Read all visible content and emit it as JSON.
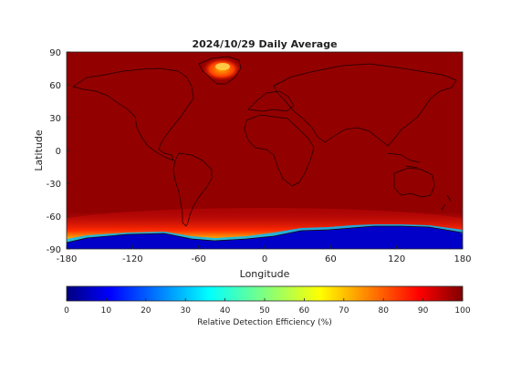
{
  "title": "2024/10/29 Daily Average",
  "map": {
    "x_axis": {
      "label": "Longitude",
      "range": [
        -180,
        180
      ],
      "ticks": [
        -180,
        -120,
        -60,
        0,
        60,
        120,
        180
      ],
      "tick_labels": [
        "-180",
        "-120",
        "-60",
        "0",
        "60",
        "120",
        "180"
      ]
    },
    "y_axis": {
      "label": "Latitude",
      "range": [
        -90,
        90
      ],
      "ticks": [
        90,
        60,
        30,
        0,
        -30,
        -60,
        -90
      ],
      "tick_labels": [
        "90",
        "60",
        "30",
        "0",
        "-30",
        "-60",
        "-90"
      ]
    },
    "dominant_value": 100,
    "features": [
      {
        "feature": "Greenland",
        "description": "lower detection efficiency",
        "value_range": [
          80,
          90
        ]
      },
      {
        "feature": "Antarctic coast",
        "description": "transition band",
        "value_range": [
          40,
          90
        ]
      },
      {
        "feature": "Antarctica interior",
        "description": "very low detection efficiency",
        "value_range": [
          0,
          20
        ]
      }
    ],
    "colormap": "jet",
    "coastlines": true
  },
  "colorbar": {
    "label": "Relative Detection Efficiency (%)",
    "range": [
      0,
      100
    ],
    "ticks": [
      0,
      10,
      20,
      30,
      40,
      50,
      60,
      70,
      80,
      90,
      100
    ],
    "tick_labels": [
      "0",
      "10",
      "20",
      "30",
      "40",
      "50",
      "60",
      "70",
      "80",
      "90",
      "100"
    ],
    "colors": [
      "#00007f",
      "#0000ff",
      "#007fff",
      "#00ffff",
      "#7fff7f",
      "#ffff00",
      "#ff7f00",
      "#ff0000",
      "#7f0000"
    ]
  }
}
